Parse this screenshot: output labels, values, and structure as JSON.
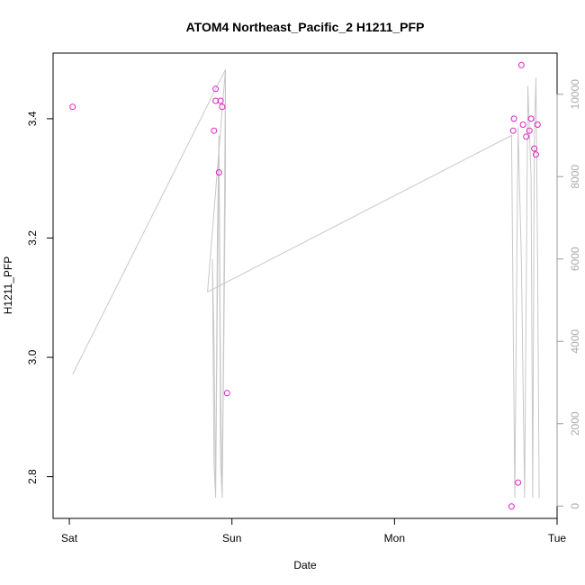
{
  "chart_data": {
    "type": "scatter",
    "title": "ATOM4 Northeast_Pacific_2 H1211_PFP",
    "xlabel": "Date",
    "ylabel": "H1211_PFP",
    "x_ticks": [
      "Sat",
      "Sun",
      "Mon",
      "Tue"
    ],
    "x_tick_days": [
      0,
      1,
      2,
      3
    ],
    "xlim_days": [
      -0.1,
      3.0
    ],
    "ylim": [
      2.73,
      3.51
    ],
    "y_ticks": [
      "2.8",
      "3.0",
      "3.2",
      "3.4"
    ],
    "y_tick_values": [
      2.8,
      3.0,
      3.2,
      3.4
    ],
    "y2lim": [
      -300,
      11000
    ],
    "y2_ticks": [
      "0",
      "2000",
      "4000",
      "6000",
      "8000",
      "10000"
    ],
    "y2_tick_values": [
      0,
      2000,
      4000,
      6000,
      8000,
      10000
    ],
    "points": {
      "color": "#e020c8",
      "x_days": [
        0.02,
        0.89,
        0.9,
        0.9,
        0.92,
        0.93,
        0.94,
        0.97,
        2.72,
        2.73,
        2.735,
        2.76,
        2.78,
        2.79,
        2.81,
        2.83,
        2.84,
        2.86,
        2.87,
        2.88
      ],
      "y": [
        3.42,
        3.38,
        3.43,
        3.45,
        3.31,
        3.43,
        3.42,
        2.94,
        2.75,
        3.38,
        3.4,
        2.79,
        3.49,
        3.39,
        3.37,
        3.38,
        3.4,
        3.35,
        3.34,
        3.39
      ]
    },
    "line": {
      "color": "#c8c8c8",
      "x_days": [
        0.02,
        0.96,
        0.96,
        0.95,
        0.94,
        0.93,
        0.92,
        0.91,
        0.9,
        0.89,
        0.88,
        0.89,
        0.9,
        0.91,
        0.92,
        0.93,
        0.94,
        0.95,
        0.96,
        0.96,
        0.85,
        2.72,
        2.72,
        2.74,
        2.76,
        2.78,
        2.8,
        2.82,
        2.84,
        2.85,
        2.86,
        2.87,
        2.88,
        2.89
      ],
      "y2": [
        3200,
        10600,
        10600,
        5000,
        200,
        3000,
        9000,
        6500,
        200,
        4000,
        6000,
        1000,
        200,
        5000,
        8700,
        1000,
        200,
        4000,
        8000,
        10600,
        5200,
        9000,
        9000,
        200,
        9200,
        6000,
        200,
        10200,
        8000,
        200,
        9000,
        10400,
        6000,
        200
      ]
    }
  }
}
